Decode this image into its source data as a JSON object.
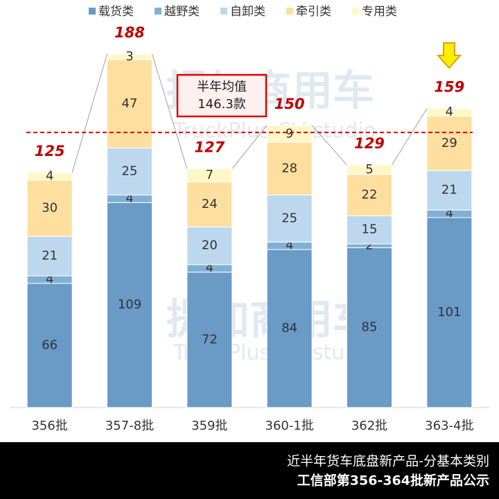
{
  "chart_data": {
    "type": "stacked_bar",
    "categories": [
      "356批",
      "357-8批",
      "359批",
      "360-1批",
      "362批",
      "363-4批"
    ],
    "series": [
      {
        "name": "载货类",
        "color": "#6a9ac6",
        "values": [
          66,
          109,
          72,
          84,
          85,
          101
        ]
      },
      {
        "name": "越野类",
        "color": "#7fb1d6",
        "values": [
          4,
          4,
          4,
          4,
          2,
          4
        ]
      },
      {
        "name": "自卸类",
        "color": "#bdd7ee",
        "values": [
          21,
          25,
          20,
          25,
          15,
          21
        ]
      },
      {
        "name": "牵引类",
        "color": "#ffdfa0",
        "values": [
          30,
          47,
          24,
          28,
          22,
          29
        ]
      },
      {
        "name": "专用类",
        "color": "#fff7c8",
        "values": [
          4,
          3,
          7,
          9,
          5,
          4
        ]
      }
    ],
    "totals": [
      125,
      188,
      127,
      150,
      129,
      159
    ],
    "average": {
      "label": "半年均值",
      "value": 146.3,
      "value_label": "146.3款"
    },
    "ylim": [
      0,
      200
    ],
    "watermark": {
      "title": "提加商用车",
      "subtitle": "TruckPlus CV studio"
    },
    "footer": [
      "近半年货车底盘新产品-分基本类别",
      "工信部第356-364批新产品公示"
    ]
  }
}
